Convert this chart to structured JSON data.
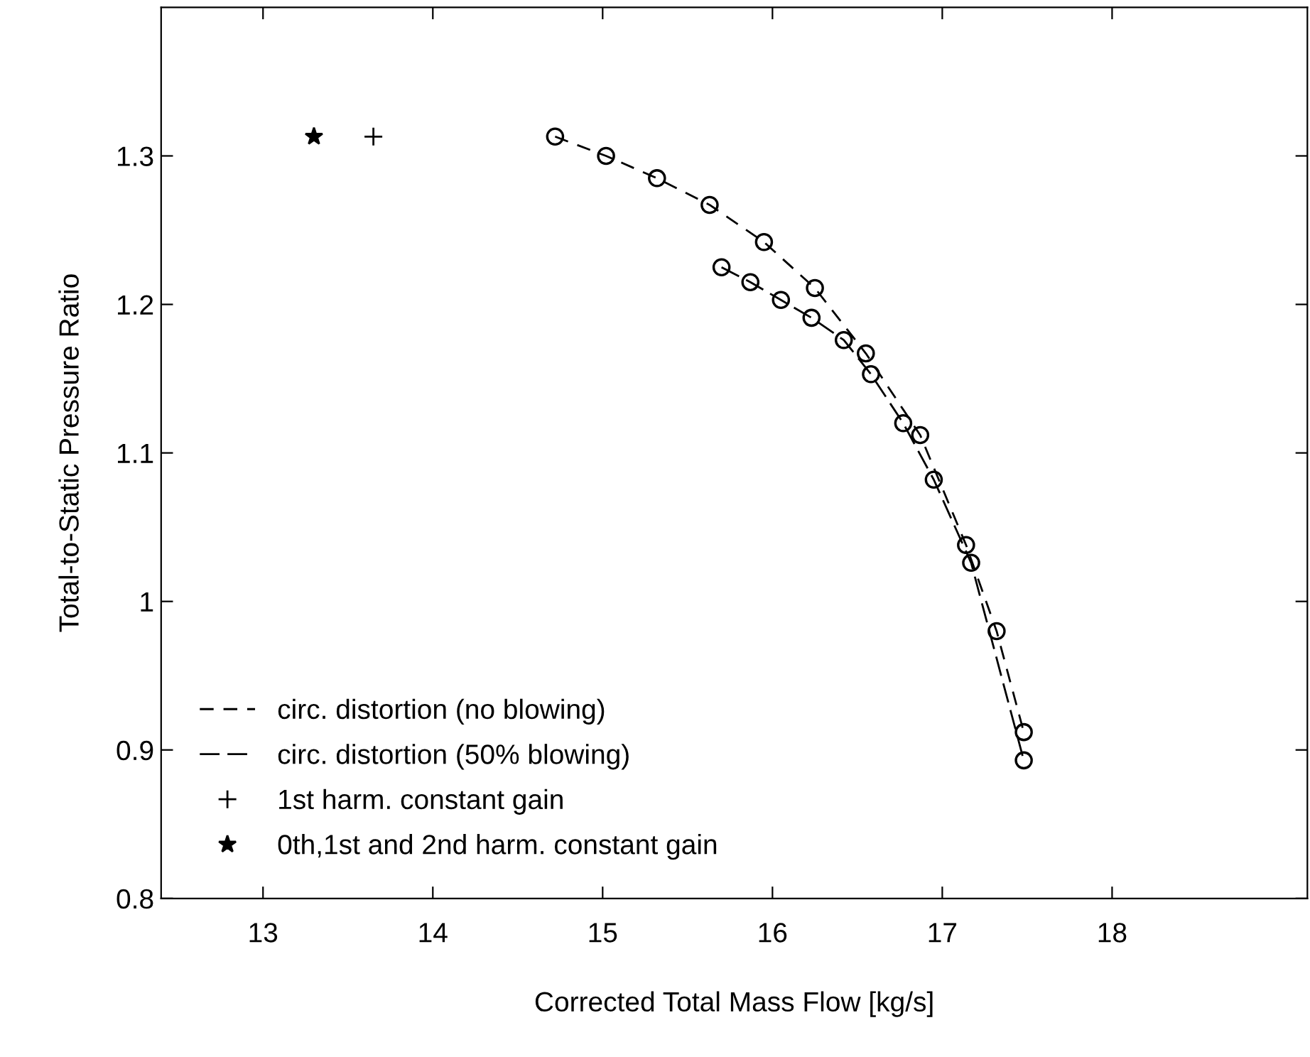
{
  "chart_data": {
    "type": "line",
    "xlabel": "Corrected Total Mass Flow [kg/s]",
    "ylabel": "Total-to-Static Pressure Ratio",
    "xlim": [
      12.4,
      19.15
    ],
    "xticks": [
      13,
      14,
      15,
      16,
      17,
      18
    ],
    "ylim": [
      0.8,
      1.4
    ],
    "yticks": [
      0.8,
      0.9,
      1,
      1.1,
      1.2,
      1.3
    ],
    "grid": false,
    "legend": "bottom left",
    "series": [
      {
        "name": "circ. distortion (no blowing)",
        "color": "#000000",
        "line_style": "dashed",
        "marker": "circle",
        "x": [
          14.72,
          15.02,
          15.32,
          15.63,
          15.95,
          16.25,
          16.55,
          16.87,
          17.14,
          17.32,
          17.48
        ],
        "values": [
          1.313,
          1.3,
          1.285,
          1.267,
          1.242,
          1.211,
          1.167,
          1.112,
          1.038,
          0.98,
          0.912
        ]
      },
      {
        "name": "circ. distortion (50% blowing)",
        "color": "#000000",
        "line_style": "dashed",
        "marker": "circle",
        "x": [
          15.7,
          15.87,
          16.05,
          16.23,
          16.42,
          16.58,
          16.77,
          16.95,
          17.17,
          17.48
        ],
        "values": [
          1.225,
          1.215,
          1.203,
          1.191,
          1.176,
          1.153,
          1.12,
          1.082,
          1.026,
          0.893
        ]
      },
      {
        "name": "1st harm. constant gain",
        "type": "scatter",
        "color": "#000000",
        "marker": "cross",
        "x": [
          13.65
        ],
        "values": [
          1.313
        ]
      },
      {
        "name": "0th,1st and 2nd harm. constant gain",
        "type": "scatter",
        "color": "#000000",
        "marker": "star",
        "x": [
          13.3
        ],
        "values": [
          1.313
        ]
      }
    ]
  }
}
